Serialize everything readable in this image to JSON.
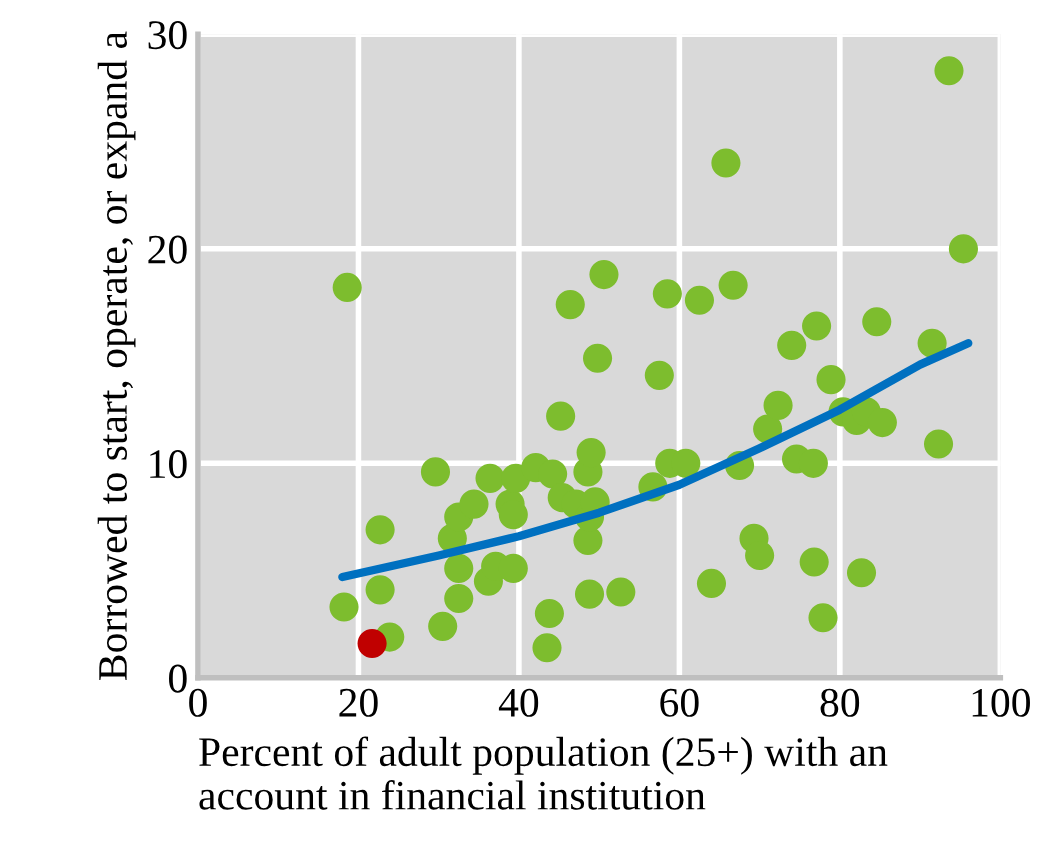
{
  "chart_data": {
    "type": "scatter",
    "xlabel": "Percent of adult population (25+) with an\naccount in financial institution",
    "ylabel": "Borrowed to start, operate, or expand a",
    "xlim": [
      0,
      100
    ],
    "xticks": [
      0,
      20,
      40,
      60,
      80,
      100
    ],
    "ylim": [
      0,
      30
    ],
    "yticks": [
      0,
      10,
      20,
      30
    ],
    "grid": true,
    "marker": "circle",
    "series": [
      {
        "color": "#7dbd2e",
        "x": [
          18.6,
          18.2,
          23.9,
          22.7,
          22.7,
          29.6,
          30.5,
          32.5,
          32.5,
          31.7,
          32.5,
          34.4,
          36.4,
          36.2,
          37.1,
          39.3,
          38.9,
          39.3,
          39.6,
          42.1,
          43.8,
          43.5,
          44.2,
          45.2,
          45.4,
          46.4,
          47.1,
          48.6,
          48.8,
          48.6,
          49.0,
          49.8,
          48.8,
          50.6,
          49.5,
          52.7,
          56.7,
          57.5,
          58.5,
          58.8,
          60.8,
          62.5,
          64.0,
          65.8,
          66.7,
          67.5,
          69.3,
          70.0,
          71.0,
          72.3,
          74.0,
          74.6,
          76.7,
          76.8,
          77.1,
          77.9,
          78.9,
          80.4,
          82.1,
          82.7,
          83.3,
          84.6,
          85.3,
          91.5,
          92.3,
          93.6,
          95.4
        ],
        "values": [
          18.2,
          3.3,
          1.9,
          6.9,
          4.1,
          9.6,
          2.4,
          3.7,
          5.1,
          6.5,
          7.5,
          8.1,
          9.3,
          4.5,
          5.2,
          5.1,
          8.1,
          7.6,
          9.3,
          9.8,
          3.0,
          1.4,
          9.5,
          12.2,
          8.4,
          17.4,
          8.1,
          6.4,
          3.9,
          9.6,
          10.5,
          14.9,
          7.5,
          18.8,
          8.2,
          4.0,
          8.9,
          14.1,
          17.9,
          10.0,
          10.0,
          17.6,
          4.4,
          24.0,
          18.3,
          9.9,
          6.5,
          5.7,
          11.6,
          12.7,
          15.5,
          10.2,
          10.0,
          5.4,
          16.4,
          2.8,
          13.9,
          12.4,
          12.0,
          4.9,
          12.4,
          16.6,
          11.9,
          15.6,
          10.9,
          28.3,
          20.0
        ]
      },
      {
        "color": "#c00000",
        "x": [
          21.7
        ],
        "values": [
          1.6
        ]
      },
      {
        "type": "line",
        "color": "#0070c0",
        "marker": "none",
        "line_style": "solid",
        "x": [
          18,
          30,
          40,
          50,
          60,
          70,
          80,
          90,
          96
        ],
        "values": [
          4.7,
          5.7,
          6.6,
          7.7,
          9.0,
          10.7,
          12.5,
          14.6,
          15.6
        ]
      }
    ]
  }
}
